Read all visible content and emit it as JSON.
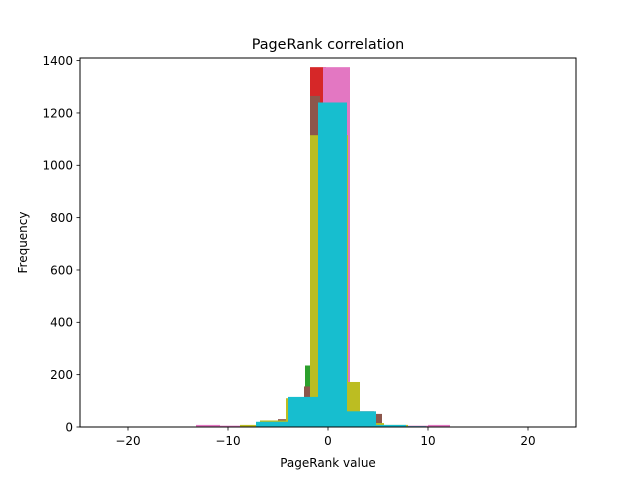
{
  "chart_data": {
    "type": "bar",
    "title": "PageRank correlation",
    "xlabel": "PageRank value",
    "ylabel": "Frequency",
    "xlim": [
      -24.8,
      24.8
    ],
    "ylim": [
      0,
      1410
    ],
    "xticks": [
      -20,
      -10,
      0,
      10,
      20
    ],
    "xtick_labels": [
      "−20",
      "−10",
      "0",
      "10",
      "20"
    ],
    "yticks": [
      0,
      200,
      400,
      600,
      800,
      1000,
      1200,
      1400
    ],
    "ytick_labels": [
      "0",
      "200",
      "400",
      "600",
      "800",
      "1000",
      "1200",
      "1400"
    ],
    "grid": false,
    "legend": "none",
    "series": [
      {
        "color": "#2ca02c",
        "bins": [
          [
            -2.3,
            -1.8,
            235
          ],
          [
            -1.8,
            -1.2,
            0
          ]
        ]
      },
      {
        "color": "#d62728",
        "bins": [
          [
            -1.8,
            -0.2,
            1375
          ],
          [
            -0.2,
            1.0,
            0
          ]
        ]
      },
      {
        "color": "#8c564b",
        "bins": [
          [
            -5.0,
            -4.2,
            30
          ],
          [
            -4.2,
            -2.4,
            100
          ],
          [
            -2.4,
            -1.8,
            155
          ],
          [
            -1.8,
            -0.8,
            1265
          ],
          [
            -0.8,
            4.6,
            60
          ],
          [
            4.6,
            5.4,
            50
          ],
          [
            5.4,
            7.0,
            5
          ]
        ]
      },
      {
        "color": "#e377c2",
        "bins": [
          [
            -13.2,
            -10.8,
            8
          ],
          [
            -10.8,
            -4.0,
            5
          ],
          [
            -4.0,
            -0.5,
            0
          ],
          [
            -0.5,
            2.2,
            1375
          ],
          [
            2.2,
            10.0,
            5
          ],
          [
            10.0,
            12.2,
            8
          ]
        ]
      },
      {
        "color": "#bcbd22",
        "bins": [
          [
            -8.8,
            -6.8,
            8
          ],
          [
            -6.8,
            -4.2,
            25
          ],
          [
            -4.2,
            -1.8,
            110
          ],
          [
            -1.8,
            2.0,
            1115
          ],
          [
            2.0,
            3.2,
            172
          ],
          [
            3.2,
            5.6,
            15
          ],
          [
            5.6,
            8.0,
            8
          ]
        ]
      },
      {
        "color": "#17becf",
        "bins": [
          [
            -7.2,
            -4.0,
            20
          ],
          [
            -4.0,
            -1.0,
            115
          ],
          [
            -1.0,
            1.9,
            1240
          ],
          [
            1.9,
            4.8,
            60
          ],
          [
            4.8,
            7.8,
            8
          ],
          [
            7.8,
            9.8,
            3
          ]
        ]
      }
    ]
  }
}
